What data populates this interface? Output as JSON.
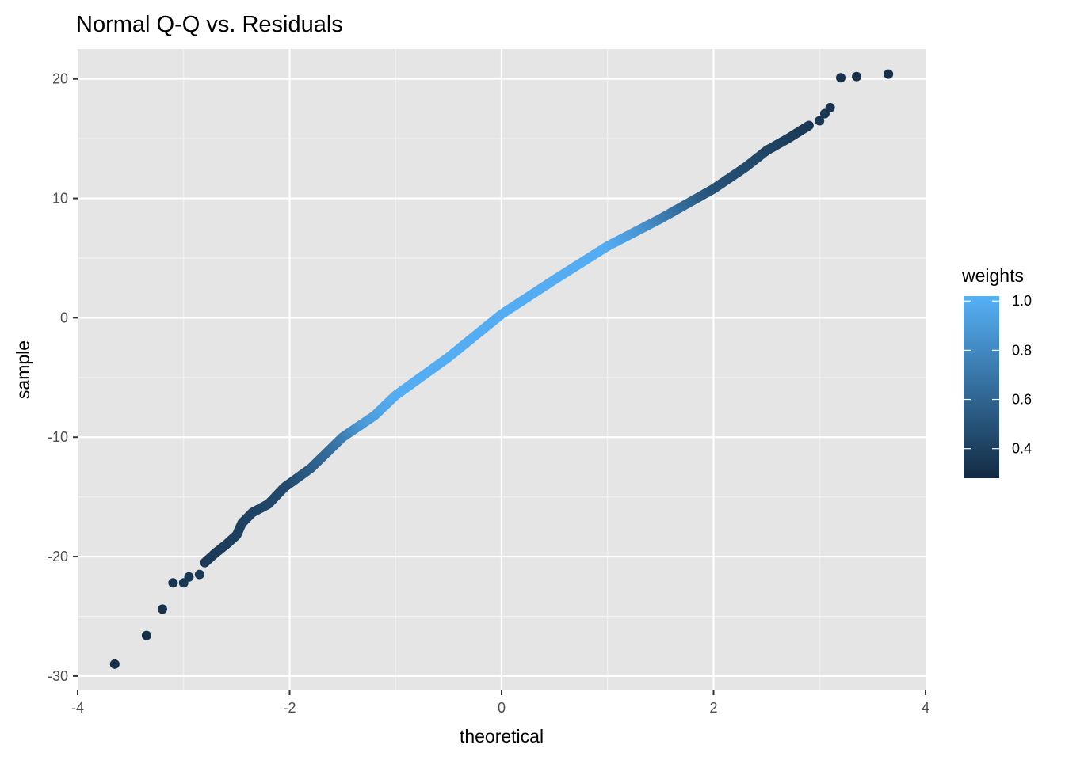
{
  "chart_data": {
    "type": "scatter",
    "title": "Normal Q-Q vs. Residuals",
    "xlabel": "theoretical",
    "ylabel": "sample",
    "xlim": [
      -4,
      4
    ],
    "ylim": [
      -31.2,
      22.5
    ],
    "x_ticks": [
      -4,
      -2,
      0,
      2,
      4
    ],
    "y_ticks": [
      -30,
      -20,
      -10,
      0,
      10,
      20
    ],
    "grid": true,
    "legend": {
      "title": "weights",
      "position": "right",
      "type": "colorbar",
      "range": [
        0.28,
        1.02
      ],
      "ticks": [
        0.4,
        0.6,
        0.8,
        1.0
      ],
      "tick_labels": [
        "0.4",
        "0.6",
        "0.8",
        "1.0"
      ],
      "low_color": "#132B43",
      "high_color": "#56B1F7"
    },
    "outlier_points": [
      {
        "x": -3.65,
        "y": -29.0,
        "weight": 0.3
      },
      {
        "x": -3.35,
        "y": -26.6,
        "weight": 0.31
      },
      {
        "x": -3.2,
        "y": -24.4,
        "weight": 0.32
      },
      {
        "x": -3.1,
        "y": -22.2,
        "weight": 0.33
      },
      {
        "x": -3.0,
        "y": -22.2,
        "weight": 0.34
      },
      {
        "x": -2.95,
        "y": -21.7,
        "weight": 0.35
      },
      {
        "x": -2.85,
        "y": -21.5,
        "weight": 0.36
      },
      {
        "x": 3.0,
        "y": 16.5,
        "weight": 0.35
      },
      {
        "x": 3.05,
        "y": 17.1,
        "weight": 0.34
      },
      {
        "x": 3.1,
        "y": 17.6,
        "weight": 0.33
      },
      {
        "x": 3.2,
        "y": 20.1,
        "weight": 0.32
      },
      {
        "x": 3.35,
        "y": 20.2,
        "weight": 0.31
      },
      {
        "x": 3.65,
        "y": 20.4,
        "weight": 0.3
      }
    ],
    "curve": {
      "description_points": [
        {
          "x": -2.8,
          "y": -20.5
        },
        {
          "x": -2.7,
          "y": -19.7
        },
        {
          "x": -2.6,
          "y": -19.0
        },
        {
          "x": -2.5,
          "y": -18.2
        },
        {
          "x": -2.45,
          "y": -17.2
        },
        {
          "x": -2.35,
          "y": -16.3
        },
        {
          "x": -2.2,
          "y": -15.6
        },
        {
          "x": -2.05,
          "y": -14.2
        },
        {
          "x": -1.8,
          "y": -12.6
        },
        {
          "x": -1.5,
          "y": -10.0
        },
        {
          "x": -1.2,
          "y": -8.2
        },
        {
          "x": -1.0,
          "y": -6.5
        },
        {
          "x": -0.5,
          "y": -3.3
        },
        {
          "x": 0.0,
          "y": 0.3
        },
        {
          "x": 0.5,
          "y": 3.2
        },
        {
          "x": 1.0,
          "y": 6.0
        },
        {
          "x": 1.5,
          "y": 8.3
        },
        {
          "x": 2.0,
          "y": 10.8
        },
        {
          "x": 2.3,
          "y": 12.6
        },
        {
          "x": 2.5,
          "y": 14.0
        },
        {
          "x": 2.7,
          "y": 15.0
        },
        {
          "x": 2.9,
          "y": 16.1
        }
      ],
      "weights": [
        {
          "x": -2.8,
          "w": 0.36
        },
        {
          "x": -2.0,
          "w": 0.45
        },
        {
          "x": -1.6,
          "w": 0.65
        },
        {
          "x": -1.3,
          "w": 0.88
        },
        {
          "x": -1.0,
          "w": 1.0
        },
        {
          "x": 1.0,
          "w": 1.0
        },
        {
          "x": 1.3,
          "w": 0.88
        },
        {
          "x": 1.6,
          "w": 0.7
        },
        {
          "x": 2.0,
          "w": 0.5
        },
        {
          "x": 2.9,
          "w": 0.36
        }
      ]
    }
  }
}
